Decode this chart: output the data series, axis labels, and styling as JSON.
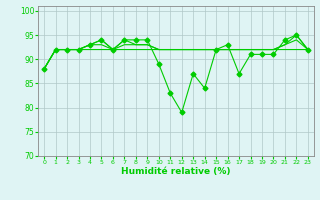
{
  "x": [
    0,
    1,
    2,
    3,
    4,
    5,
    6,
    7,
    8,
    9,
    10,
    11,
    12,
    13,
    14,
    15,
    16,
    17,
    18,
    19,
    20,
    21,
    22,
    23
  ],
  "y_main": [
    88,
    92,
    92,
    92,
    93,
    94,
    92,
    94,
    94,
    94,
    89,
    83,
    79,
    87,
    84,
    92,
    93,
    87,
    91,
    91,
    91,
    94,
    95,
    92
  ],
  "y_line2": [
    88,
    92,
    92,
    92,
    92,
    92,
    92,
    92,
    92,
    92,
    92,
    92,
    92,
    92,
    92,
    92,
    92,
    92,
    92,
    92,
    92,
    92,
    92,
    92
  ],
  "y_line3": [
    88,
    92,
    92,
    92,
    93,
    93,
    92,
    93,
    93,
    93,
    92,
    92,
    92,
    92,
    92,
    92,
    92,
    92,
    92,
    92,
    92,
    93,
    94,
    92
  ],
  "y_line4": [
    88,
    92,
    92,
    92,
    93,
    94,
    92,
    94,
    93,
    93,
    92,
    92,
    92,
    92,
    92,
    92,
    92,
    92,
    92,
    92,
    92,
    93,
    95,
    92
  ],
  "ylim": [
    70,
    101
  ],
  "yticks": [
    70,
    75,
    80,
    85,
    90,
    95,
    100
  ],
  "xticks": [
    0,
    1,
    2,
    3,
    4,
    5,
    6,
    7,
    8,
    9,
    10,
    11,
    12,
    13,
    14,
    15,
    16,
    17,
    18,
    19,
    20,
    21,
    22,
    23
  ],
  "xlabels": [
    "0",
    "1",
    "2",
    "3",
    "4",
    "5",
    "6",
    "7",
    "8",
    "9",
    "10",
    "11",
    "12",
    "13",
    "14",
    "15",
    "16",
    "17",
    "18",
    "19",
    "20",
    "21",
    "22",
    "23"
  ],
  "xlabel": "Humidité relative (%)",
  "line_color": "#00cc00",
  "bg_color": "#dff4f4",
  "grid_color": "#b0c8c8",
  "spine_color": "#888888"
}
